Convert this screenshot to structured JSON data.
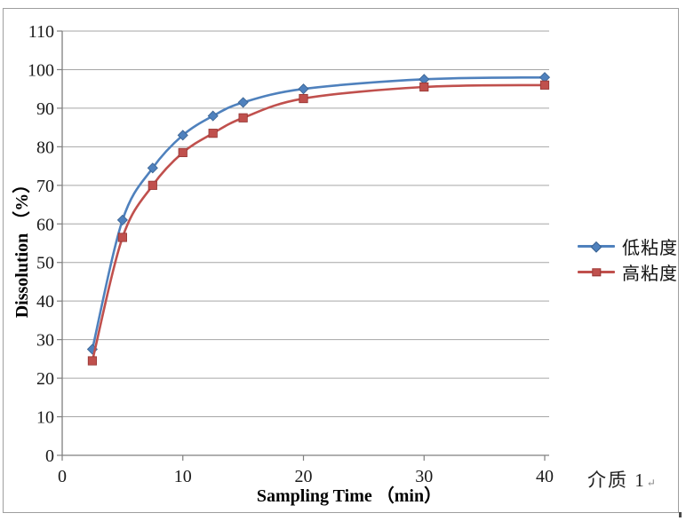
{
  "document": {
    "caption": "介质 1",
    "caption_mark": "↵"
  },
  "chart_data": {
    "type": "line",
    "subtype": "xy-scatter-smooth-with-markers",
    "title": "",
    "xlabel": "Sampling Time （min）",
    "ylabel": "Dissolution （%）",
    "xlim": [
      0,
      40
    ],
    "ylim": [
      0,
      110
    ],
    "xticks": [
      0,
      10,
      20,
      30,
      40
    ],
    "yticks": [
      0,
      10,
      20,
      30,
      40,
      50,
      60,
      70,
      80,
      90,
      100,
      110
    ],
    "grid": "horizontal",
    "legend_position": "right",
    "x": [
      2.5,
      5,
      7.5,
      10,
      12.5,
      15,
      20,
      30,
      40
    ],
    "series": [
      {
        "name": "低粘度",
        "marker": "diamond",
        "color": "#4F81BD",
        "edge": "#39618F",
        "values": [
          27.5,
          61,
          74.5,
          83,
          88,
          91.5,
          95,
          97.5,
          98
        ]
      },
      {
        "name": "高粘度",
        "marker": "square",
        "color": "#C0504D",
        "edge": "#943634",
        "values": [
          24.5,
          56.5,
          70,
          78.5,
          83.5,
          87.5,
          92.5,
          95.5,
          96
        ]
      }
    ],
    "style": {
      "grid_color": "#a6a6a6",
      "axis_color": "#7f7f7f",
      "text_color": "#1a1a1a",
      "frame_color": "#9f9f9f"
    }
  }
}
